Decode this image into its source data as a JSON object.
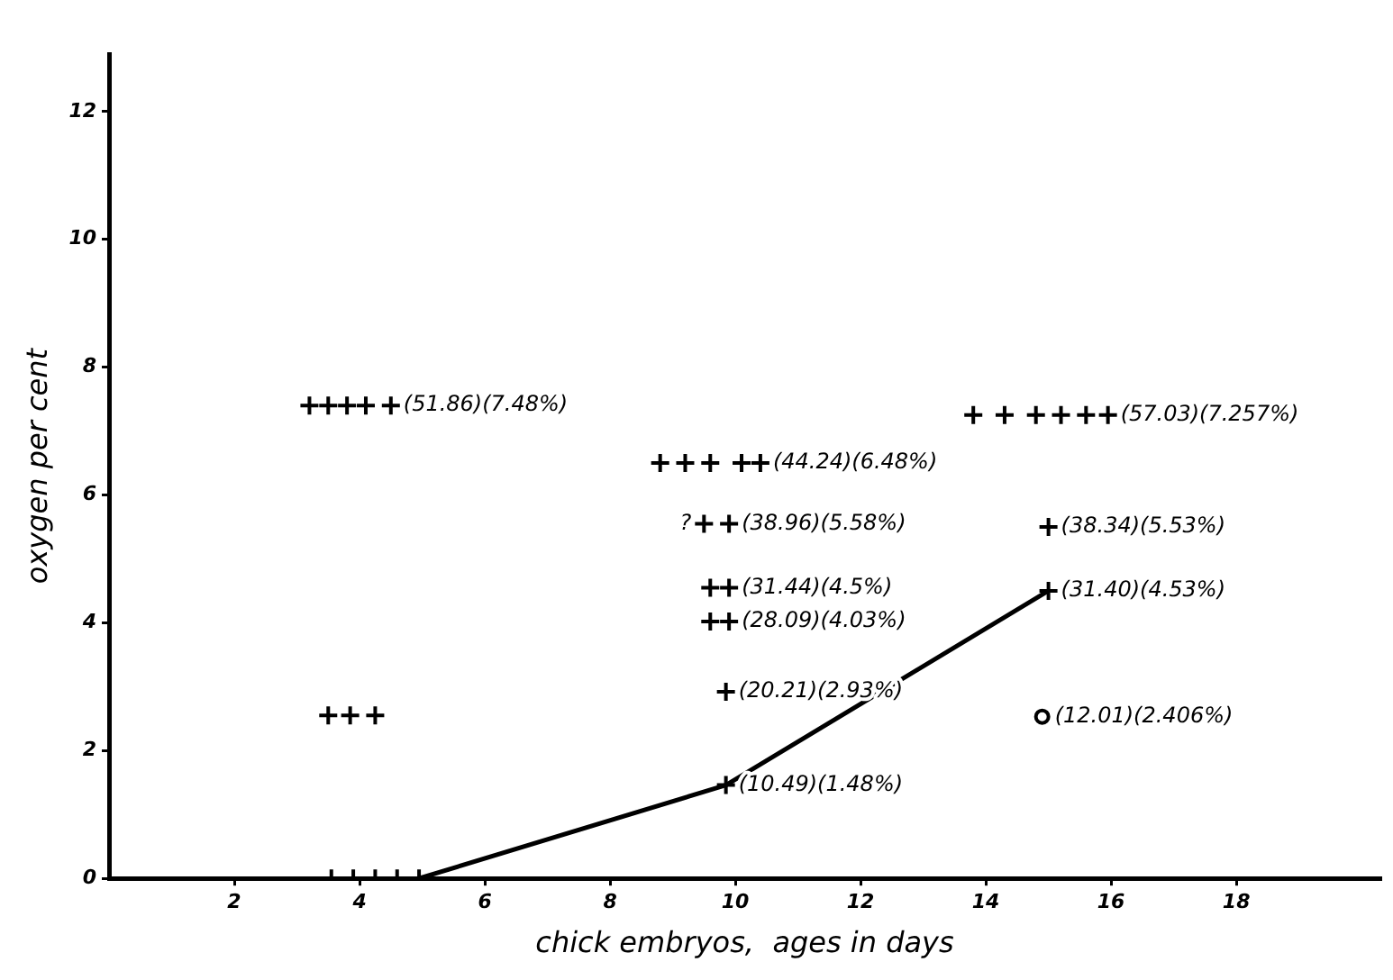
{
  "chart_data": {
    "type": "scatter",
    "xlabel": "chick embryos,  ages in days",
    "ylabel": "oxygen per cent",
    "xlim": [
      0,
      20.3
    ],
    "ylim": [
      0,
      12.9
    ],
    "xticks": [
      2,
      4,
      6,
      8,
      10,
      12,
      14,
      16,
      18
    ],
    "yticks": [
      0,
      2,
      4,
      6,
      8,
      10,
      12
    ],
    "grid": false,
    "legend": false,
    "series": [
      {
        "marker": "cross",
        "color": "#000000",
        "x": [
          3.2,
          3.5,
          3.8,
          4.1,
          4.5,
          3.5,
          3.85,
          4.25,
          3.55,
          3.9,
          4.25,
          4.6,
          4.95,
          8.8,
          9.2,
          9.6,
          10.1,
          10.4,
          9.5,
          9.9,
          9.6,
          9.9,
          9.6,
          9.9,
          9.85,
          9.85,
          13.8,
          14.3,
          14.8,
          15.2,
          15.6,
          15.95,
          15.0,
          15.0
        ],
        "values": [
          7.4,
          7.4,
          7.4,
          7.4,
          7.4,
          2.55,
          2.55,
          2.55,
          0,
          0,
          0,
          0,
          0,
          6.5,
          6.5,
          6.5,
          6.5,
          6.5,
          5.55,
          5.55,
          4.55,
          4.55,
          4.02,
          4.02,
          2.92,
          1.46,
          7.25,
          7.25,
          7.25,
          7.25,
          7.25,
          7.25,
          5.5,
          4.5
        ]
      },
      {
        "marker": "circle",
        "color": "#000000",
        "x": [
          14.9
        ],
        "values": [
          2.53
        ]
      },
      {
        "type": "line",
        "marker": "none",
        "line_style": "solid",
        "color": "#000000",
        "x": [
          4.95,
          9.85,
          15.0
        ],
        "values": [
          0,
          1.46,
          4.5
        ]
      }
    ],
    "annotations": [
      {
        "text": "(51.86)(7.48%)",
        "x": 4.5,
        "y": 7.4
      },
      {
        "text": "(44.24)(6.48%)",
        "x": 10.4,
        "y": 6.5
      },
      {
        "text": "?",
        "x": 9.5,
        "y": 5.55
      },
      {
        "text": "(38.96)(5.58%)",
        "x": 9.9,
        "y": 5.55
      },
      {
        "text": "(31.44)(4.5%)",
        "x": 9.9,
        "y": 4.55
      },
      {
        "text": "(28.09)(4.03%)",
        "x": 9.9,
        "y": 4.02
      },
      {
        "text": "(20.21)(2.93%)",
        "x": 9.85,
        "y": 2.92
      },
      {
        "text": "(10.49)(1.48%)",
        "x": 9.85,
        "y": 1.46
      },
      {
        "text": "(57.03)(7.257%)",
        "x": 15.95,
        "y": 7.25
      },
      {
        "text": "(38.34)(5.53%)",
        "x": 15.0,
        "y": 5.5
      },
      {
        "text": "(31.40)(4.53%)",
        "x": 15.0,
        "y": 4.5
      },
      {
        "text": "(12.01)(2.406%)",
        "x": 14.9,
        "y": 2.53
      }
    ]
  }
}
